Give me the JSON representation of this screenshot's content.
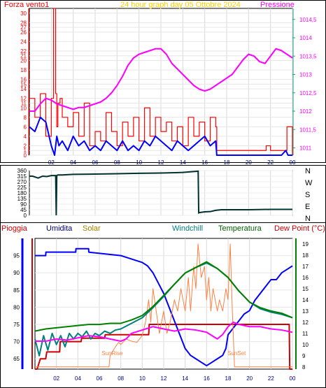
{
  "chart_data": [
    {
      "type": "line",
      "title": "24 hour graph day  05 Ottobre 2024",
      "ylabel_left": "Forza vento1",
      "ylabel_right": "Pressione",
      "ylim_left": [
        0,
        31
      ],
      "ylim_right": [
        1010.8,
        1014.8
      ],
      "left_ticks": [
        0,
        1,
        2,
        4,
        6,
        8,
        10,
        11,
        12,
        14,
        15,
        16,
        18,
        20,
        21,
        22,
        24,
        26,
        27,
        28,
        30
      ],
      "right_ticks": [
        "1011",
        "1011,5",
        "1012",
        "1012,5",
        "1013",
        "1013,5",
        "1014",
        "1014,5"
      ],
      "right_tick_values": [
        1011,
        1011.5,
        1012,
        1012.5,
        1013,
        1013.5,
        1014,
        1014.5
      ],
      "x_ticks": [
        "02",
        "04",
        "06",
        "08",
        "10",
        "12",
        "14",
        "16",
        "18",
        "20",
        "22",
        "00"
      ],
      "series": [
        {
          "key": "gust",
          "color": "#ff0000",
          "axis": "left",
          "x": [
            0,
            0.5,
            1,
            1.5,
            2,
            2.2,
            2.4,
            2.5,
            2.6,
            2.8,
            3,
            3.5,
            4,
            4.5,
            5,
            5.5,
            6,
            6.5,
            7,
            7.5,
            8,
            8.5,
            9,
            9.5,
            10,
            10.5,
            11,
            11.5,
            12,
            12.5,
            13,
            13.5,
            14,
            14.5,
            15,
            15.5,
            16,
            16.5,
            17,
            17.1,
            18,
            20,
            21.5,
            21.6,
            21.8,
            22,
            22.5,
            23,
            23.3,
            23.5,
            24
          ],
          "y": [
            12,
            8,
            13,
            4,
            12,
            31,
            13,
            6,
            11,
            12,
            8,
            6,
            9,
            4,
            11,
            2,
            5,
            3,
            9,
            5,
            2,
            7,
            4,
            8,
            3,
            10,
            4,
            8,
            5,
            7,
            3,
            6,
            2,
            8,
            4,
            7,
            3,
            8,
            6,
            1,
            1,
            1,
            1,
            2,
            2,
            1,
            1,
            1,
            1,
            6,
            0
          ]
        },
        {
          "key": "wind",
          "color": "#0000ff",
          "axis": "left",
          "x": [
            0,
            0.5,
            1,
            1.5,
            2,
            2.3,
            2.5,
            2.7,
            3,
            3.5,
            4,
            4.5,
            5,
            5.5,
            6,
            6.5,
            7,
            7.5,
            8,
            8.5,
            9,
            9.5,
            10,
            10.5,
            11,
            11.5,
            12,
            12.5,
            13,
            13.5,
            14,
            14.5,
            15,
            15.5,
            16,
            16.5,
            17,
            17.1,
            18,
            20,
            22,
            23,
            23.4,
            23.6,
            24
          ],
          "y": [
            6,
            5,
            8,
            7,
            2,
            0,
            4,
            2,
            3,
            1,
            4,
            2,
            3,
            1,
            2,
            1,
            3,
            2,
            1,
            3,
            1,
            2,
            1,
            3,
            2,
            4,
            3,
            2,
            1,
            3,
            2,
            1,
            2,
            3,
            4,
            2,
            3,
            0,
            0,
            0,
            0,
            0,
            1,
            0,
            0
          ]
        },
        {
          "key": "pressure",
          "color": "#ff00ff",
          "axis": "right",
          "x": [
            0,
            0.5,
            1,
            1.5,
            2,
            2.5,
            3,
            3.5,
            4,
            4.5,
            5,
            5.5,
            6,
            6.5,
            7,
            7.5,
            8,
            8.5,
            9,
            9.5,
            10,
            10.5,
            11,
            11.5,
            12,
            12.5,
            13,
            13.5,
            14,
            14.5,
            15,
            15.5,
            16,
            16.5,
            17,
            17.5,
            18,
            18.5,
            19,
            19.5,
            20,
            20.5,
            21,
            21.5,
            22,
            22.5,
            23,
            23.5,
            24
          ],
          "y": [
            1012.0,
            1012.0,
            1012.2,
            1012.35,
            1012.3,
            1012.2,
            1012.15,
            1012.1,
            1012.05,
            1012.1,
            1012.1,
            1012.15,
            1012.2,
            1012.25,
            1012.35,
            1012.5,
            1012.7,
            1012.95,
            1013.25,
            1013.45,
            1013.55,
            1013.6,
            1013.65,
            1013.7,
            1013.7,
            1013.55,
            1013.3,
            1013.15,
            1013.0,
            1012.85,
            1012.7,
            1012.6,
            1012.55,
            1012.6,
            1012.7,
            1012.8,
            1012.9,
            1013.0,
            1013.2,
            1013.4,
            1013.55,
            1013.5,
            1013.35,
            1013.3,
            1013.5,
            1013.7,
            1013.65,
            1013.55,
            1013.45
          ]
        }
      ]
    },
    {
      "type": "line",
      "y_ticks": [
        0,
        45,
        90,
        135,
        180,
        225,
        270,
        315,
        360
      ],
      "ylim": [
        0,
        360
      ],
      "directions": [
        "N",
        "W",
        "S",
        "E",
        "N"
      ],
      "x_ticks": [
        "02",
        "04",
        "06",
        "08",
        "10",
        "12",
        "14",
        "16",
        "18",
        "20",
        "22",
        "00"
      ],
      "series": [
        {
          "key": "winddir",
          "color": "#003030",
          "x": [
            0,
            0.3,
            0.8,
            1.2,
            1.6,
            2,
            2.4,
            2.45,
            2.5,
            2.6,
            3,
            4,
            6,
            8,
            10,
            12,
            14,
            15.4,
            15.45,
            15.5,
            16,
            16.5,
            17,
            17.5,
            18,
            20,
            22,
            24
          ],
          "y": [
            315,
            315,
            300,
            315,
            312,
            320,
            320,
            0,
            320,
            325,
            325,
            330,
            332,
            335,
            338,
            340,
            345,
            355,
            20,
            22,
            28,
            30,
            40,
            45,
            45,
            45,
            48,
            48
          ]
        }
      ]
    },
    {
      "type": "line",
      "legend": [
        "Pioggia",
        "Umidita",
        "Solar",
        "Windchill",
        "Temperatura",
        "Dew Point (°C)"
      ],
      "ylim_left": [
        62,
        100
      ],
      "left_ticks": [
        65,
        70,
        75,
        80,
        85,
        90,
        95
      ],
      "ylim_right": [
        7.8,
        19.5
      ],
      "right_ticks": [
        8,
        9,
        10,
        11,
        12,
        13,
        14,
        15,
        16,
        17,
        18,
        19
      ],
      "annotations": [
        "SunRise",
        "SunSet"
      ],
      "x_ticks": [
        "02",
        "04",
        "06",
        "08",
        "10",
        "12",
        "14",
        "16",
        "18",
        "20",
        "22",
        "00"
      ],
      "series": [
        {
          "key": "rain",
          "color": "#cc0000",
          "axis": "left",
          "x": [
            0,
            0.2,
            0.5,
            1,
            1.1,
            2.3,
            2.35,
            4.3,
            4.35,
            6.5,
            6.55,
            9,
            9.05,
            10.6,
            10.65,
            23.7,
            23.75,
            24
          ],
          "y": [
            62,
            62,
            65,
            65,
            67,
            67,
            70,
            70,
            71,
            71,
            72,
            72,
            72,
            72,
            75,
            75,
            62,
            62
          ]
        },
        {
          "key": "humidity",
          "color": "#0000ff",
          "axis": "left",
          "x": [
            0,
            1,
            1.02,
            3.8,
            3.82,
            5,
            5.02,
            8,
            10,
            10.5,
            11,
            11.5,
            12,
            12.5,
            13,
            13.5,
            14,
            14.5,
            15,
            15.5,
            16,
            16.5,
            17,
            17.5,
            17.8,
            18,
            18.5,
            19,
            19.5,
            20,
            20.5,
            21,
            21.5,
            22,
            22.5,
            23,
            23.5,
            24
          ],
          "y": [
            95,
            95,
            96,
            96,
            97,
            97,
            96,
            95,
            93,
            92,
            90,
            87,
            84,
            80,
            76,
            72,
            68,
            66,
            65,
            64,
            63,
            64,
            65,
            66,
            68,
            72,
            74,
            76,
            78,
            79,
            82,
            84,
            86,
            88,
            88,
            90,
            91,
            92
          ]
        },
        {
          "key": "solar",
          "color": "#ff8040",
          "axis": "right",
          "x": [
            0,
            6.9,
            7,
            7.5,
            7.8,
            8,
            8.5,
            9,
            9.5,
            10,
            10.3,
            10.6,
            10.8,
            11,
            11.3,
            11.6,
            12,
            12.3,
            12.6,
            13,
            13.3,
            13.6,
            14,
            14.3,
            14.5,
            14.8,
            15,
            15.2,
            15.5,
            15.8,
            16,
            16.2,
            16.4,
            16.6,
            17,
            17.2,
            17.5,
            17.8,
            18,
            18.2,
            18.4,
            18.6,
            19,
            24
          ],
          "y": [
            8,
            8,
            9,
            9.8,
            10.2,
            10,
            10.5,
            10.3,
            10.2,
            10.8,
            12,
            14,
            12,
            15,
            13,
            11,
            13,
            11,
            12,
            14,
            13,
            15,
            13,
            16,
            13,
            17,
            15,
            19,
            16,
            17,
            14,
            16,
            13,
            15,
            13,
            14,
            13,
            15,
            14,
            19,
            13,
            8,
            8,
            8
          ]
        },
        {
          "key": "windchill",
          "color": "#008080",
          "axis": "right",
          "x": [
            0,
            0.4,
            0.8,
            1.2,
            1.6,
            2,
            2.4,
            2.8,
            3.2,
            3.6,
            4,
            4.4,
            4.8,
            5.2,
            5.6,
            6,
            6.5,
            7,
            7.5,
            8,
            9,
            10,
            11,
            12,
            13,
            14,
            15,
            16,
            17,
            18,
            19,
            20,
            21,
            22,
            23,
            24
          ],
          "y": [
            10.5,
            9,
            10.8,
            9.5,
            11,
            10,
            10.8,
            9.8,
            11,
            10.5,
            11,
            10.7,
            11.2,
            10.5,
            11,
            10.8,
            11.2,
            11,
            11.3,
            11.4,
            11.9,
            12.4,
            13.3,
            14.3,
            15.4,
            16.4,
            16.9,
            17.3,
            16.8,
            16,
            14.8,
            13.8,
            13.2,
            12.9,
            12.7,
            12.4
          ]
        },
        {
          "key": "temperature",
          "color": "#008000",
          "axis": "right",
          "x": [
            0,
            1,
            2,
            3,
            4,
            5,
            6,
            7,
            8,
            9,
            10,
            11,
            12,
            13,
            14,
            15,
            16,
            17,
            18,
            19,
            20,
            21,
            22,
            23,
            24
          ],
          "y": [
            11.2,
            11.4,
            11.5,
            11.6,
            11.7,
            11.8,
            11.8,
            11.9,
            11.9,
            12.2,
            12.6,
            13.4,
            14.4,
            15.4,
            16.4,
            16.9,
            17.4,
            16.8,
            16,
            14.8,
            13.8,
            13.3,
            13,
            12.8,
            12.4
          ]
        },
        {
          "key": "dewpoint",
          "color": "#ff00ff",
          "axis": "right",
          "x": [
            0,
            1,
            2,
            3,
            4,
            5,
            6,
            7,
            8,
            8.5,
            9,
            10,
            11,
            12,
            13,
            14,
            15,
            16,
            17,
            17.5,
            18,
            18.5,
            19,
            20,
            21,
            22,
            23,
            24
          ],
          "y": [
            10.3,
            10.3,
            10.5,
            10.4,
            10.6,
            10.8,
            10.7,
            10.5,
            10.3,
            10.5,
            11,
            11.3,
            11.6,
            11.4,
            11.2,
            11.4,
            11.3,
            11.1,
            10.5,
            10.9,
            11.6,
            12,
            11.8,
            11.6,
            11.6,
            11.4,
            11.3,
            11.1
          ]
        }
      ]
    }
  ]
}
